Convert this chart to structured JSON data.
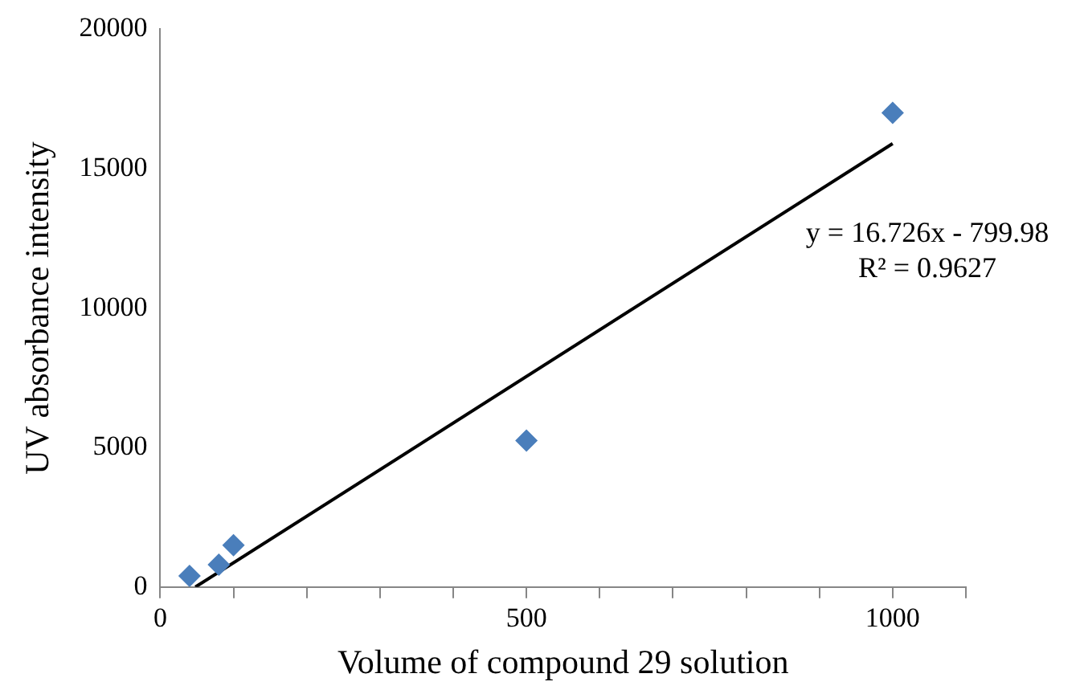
{
  "chart_data": {
    "type": "scatter",
    "xlabel": "Volume of compound 29 solution",
    "ylabel": "UV absorbance intensity",
    "annotations": [
      "y = 16.726x - 799.98",
      "R² = 0.9627"
    ],
    "series": [
      {
        "color": "#4a7ebb",
        "x": [
          40,
          80,
          100,
          500,
          1000
        ],
        "values": [
          400,
          800,
          1500,
          5250,
          17000
        ],
        "marker": "diamond"
      },
      {
        "type": "line",
        "color": "#000000",
        "x": [
          48,
          1000
        ],
        "values": [
          0,
          15900
        ],
        "marker": "none",
        "line_style": "solid"
      }
    ],
    "xlim": [
      0,
      1100
    ],
    "xticks": [
      0,
      {
        "value": 100,
        "label": null
      },
      {
        "value": 200,
        "label": null
      },
      {
        "value": 300,
        "label": null
      },
      {
        "value": 400,
        "label": null
      },
      500,
      {
        "value": 600,
        "label": null
      },
      {
        "value": 700,
        "label": null
      },
      {
        "value": 800,
        "label": null
      },
      {
        "value": 900,
        "label": null
      },
      1000,
      {
        "value": 1100,
        "label": null
      }
    ],
    "ylim": [
      0,
      20000
    ],
    "yticks": [
      0,
      5000,
      10000,
      15000,
      20000
    ],
    "grid": false,
    "legend": false
  }
}
